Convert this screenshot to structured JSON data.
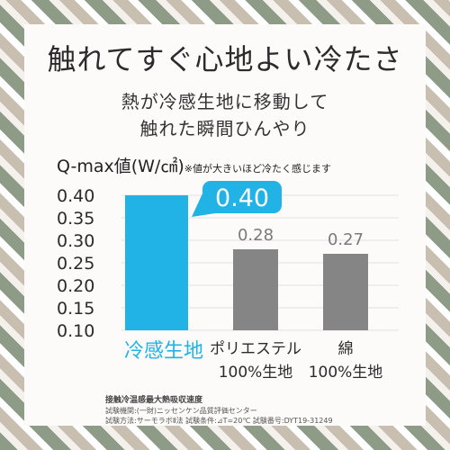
{
  "headline": "触れてすぐ心地よい冷たさ",
  "subtitle_lines": [
    "熱が冷感生地に移動して",
    "触れた瞬間ひんやり"
  ],
  "axis_title": "Q-max値(W/㎠)",
  "axis_note": "※値が大きいほど冷たく感じます",
  "colors": {
    "highlight": "#21b3e6",
    "bar_gray": "#858585",
    "value_gray": "#7a7a7a",
    "text": "#2b2b2b"
  },
  "chart_data": {
    "type": "bar",
    "categories": [
      [
        "冷感生地"
      ],
      [
        "ポリエステル",
        "100%生地"
      ],
      [
        "綿",
        "100%生地"
      ]
    ],
    "values": [
      0.4,
      0.28,
      0.27
    ],
    "value_labels": [
      "0.40",
      "0.28",
      "0.27"
    ],
    "highlight_index": 0,
    "yticks": [
      "0.40",
      "0.35",
      "0.30",
      "0.25",
      "0.20",
      "0.15",
      "0.10"
    ],
    "ylim": [
      0.1,
      0.4
    ],
    "ylabel": "Q-max値(W/㎠)"
  },
  "footnote": {
    "title": "接触冷温感最大熱吸収速度",
    "lines": [
      "試験機関:(一財)ニッセンケン品質評価センター",
      "試験方法:サーモラボⅡ法 試験条件:⊿T=20℃ 試験番号:DYT19-31249"
    ]
  }
}
